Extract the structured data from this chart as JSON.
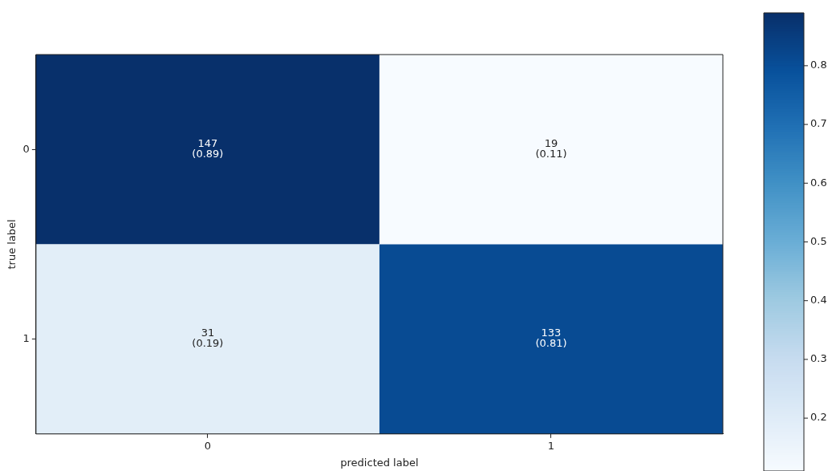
{
  "chart_data": {
    "type": "heatmap",
    "xlabel": "predicted label",
    "ylabel": "true label",
    "categories": [
      "0",
      "1"
    ],
    "y_categories": [
      "0",
      "1"
    ],
    "cells": [
      [
        0.89,
        0.11
      ],
      [
        0.19,
        0.81
      ]
    ],
    "cell_labels": [
      [
        "147\n(0.89)",
        "19\n(0.11)"
      ],
      [
        "31\n(0.19)",
        "133\n(0.81)"
      ]
    ],
    "clim": [
      0.11,
      0.89
    ],
    "cticks": [
      0.2,
      0.3,
      0.4,
      0.5,
      0.6,
      0.7,
      0.8
    ],
    "grid": false,
    "legend": false
  }
}
